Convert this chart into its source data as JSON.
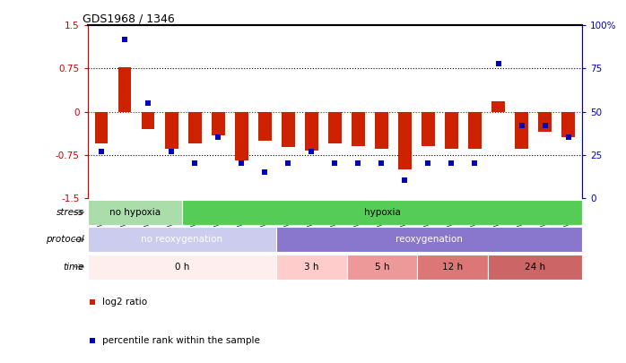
{
  "title": "GDS1968 / 1346",
  "samples": [
    "GSM16836",
    "GSM16837",
    "GSM16838",
    "GSM16839",
    "GSM16784",
    "GSM16814",
    "GSM16815",
    "GSM16816",
    "GSM16817",
    "GSM16818",
    "GSM16819",
    "GSM16821",
    "GSM16824",
    "GSM16826",
    "GSM16828",
    "GSM16830",
    "GSM16831",
    "GSM16832",
    "GSM16833",
    "GSM16834",
    "GSM16835"
  ],
  "log2_ratio": [
    -0.55,
    0.78,
    -0.3,
    -0.65,
    -0.55,
    -0.42,
    -0.85,
    -0.5,
    -0.62,
    -0.68,
    -0.55,
    -0.6,
    -0.65,
    -1.0,
    -0.6,
    -0.65,
    -0.65,
    0.18,
    -0.65,
    -0.35,
    -0.45
  ],
  "percentile_rank": [
    27,
    92,
    55,
    27,
    20,
    35,
    20,
    15,
    20,
    27,
    20,
    20,
    20,
    10,
    20,
    20,
    20,
    78,
    42,
    42,
    35
  ],
  "ylim_left": [
    -1.5,
    1.5
  ],
  "ylim_right": [
    0,
    100
  ],
  "yticks_left": [
    -1.5,
    -0.75,
    0,
    0.75,
    1.5
  ],
  "yticks_right": [
    0,
    25,
    50,
    75,
    100
  ],
  "hline_dotted": [
    -0.75,
    0.75
  ],
  "bar_color": "#cc2200",
  "dot_color": "#0000bb",
  "stress_groups": [
    {
      "label": "no hypoxia",
      "start": 0,
      "end": 4,
      "color": "#aaddaa"
    },
    {
      "label": "hypoxia",
      "start": 4,
      "end": 21,
      "color": "#55cc55"
    }
  ],
  "protocol_groups": [
    {
      "label": "no reoxygenation",
      "start": 0,
      "end": 8,
      "color": "#ccccee"
    },
    {
      "label": "reoxygenation",
      "start": 8,
      "end": 21,
      "color": "#8877cc"
    }
  ],
  "time_groups": [
    {
      "label": "0 h",
      "start": 0,
      "end": 8,
      "color": "#ffeeee"
    },
    {
      "label": "3 h",
      "start": 8,
      "end": 11,
      "color": "#ffcccc"
    },
    {
      "label": "5 h",
      "start": 11,
      "end": 14,
      "color": "#ee9999"
    },
    {
      "label": "12 h",
      "start": 14,
      "end": 17,
      "color": "#dd7777"
    },
    {
      "label": "24 h",
      "start": 17,
      "end": 21,
      "color": "#cc6666"
    }
  ],
  "legend_items": [
    {
      "label": "log2 ratio",
      "color": "#cc2200"
    },
    {
      "label": "percentile rank within the sample",
      "color": "#0000bb"
    }
  ],
  "row_label_names": [
    "stress",
    "protocol",
    "time"
  ]
}
